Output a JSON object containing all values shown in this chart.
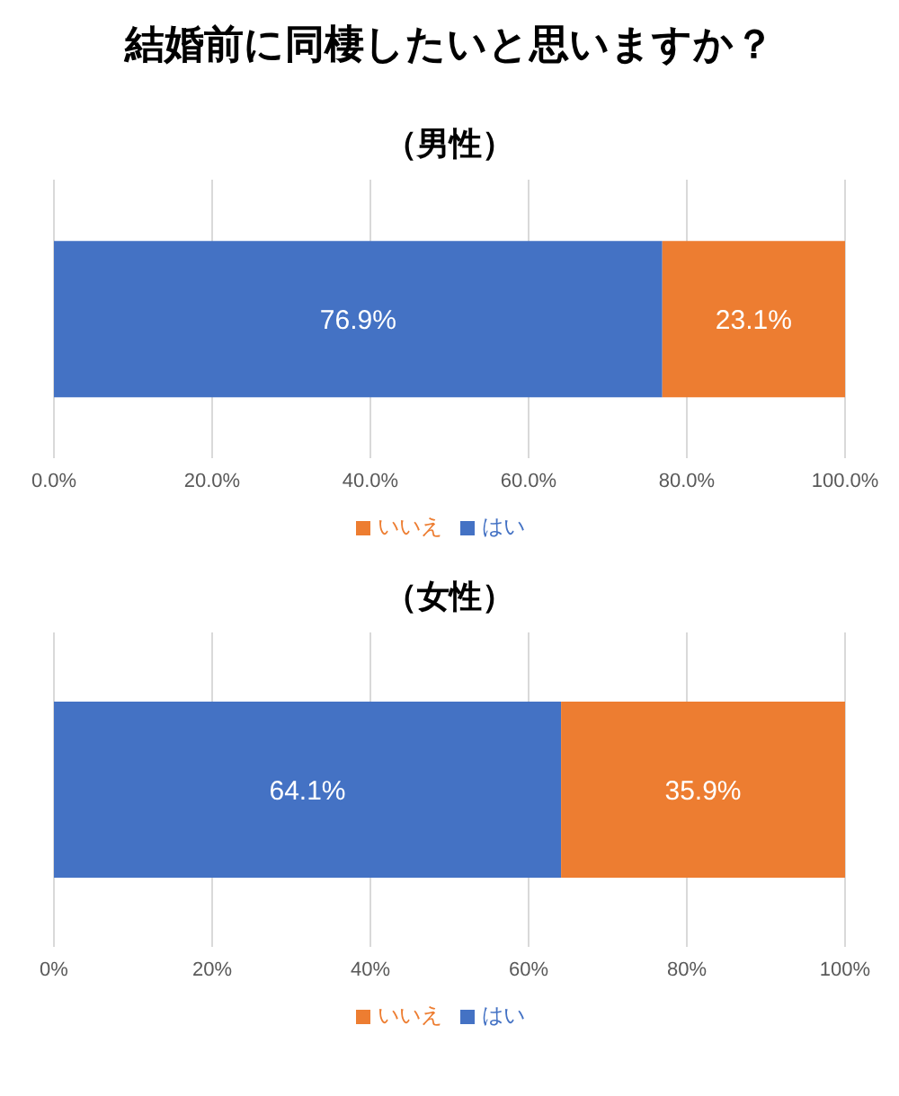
{
  "chart_data": [
    {
      "type": "bar",
      "title": "結婚前に同棲したいと思いますか？",
      "subtitle": "（男性）",
      "orientation": "horizontal",
      "stacked": true,
      "categories": [
        null
      ],
      "series": [
        {
          "name": "はい",
          "color": "#4472c4",
          "values": [
            76.9
          ],
          "value_labels": [
            "76.9%"
          ]
        },
        {
          "name": "いいえ",
          "color": "#ed7d31",
          "values": [
            23.1
          ],
          "value_labels": [
            "23.1%"
          ]
        }
      ],
      "xlim": [
        0,
        100
      ],
      "xticks": [
        {
          "value": 0,
          "label": "0.0%"
        },
        {
          "value": 20,
          "label": "20.0%"
        },
        {
          "value": 40,
          "label": "40.0%"
        },
        {
          "value": 60,
          "label": "60.0%"
        },
        {
          "value": 80,
          "label": "80.0%"
        },
        {
          "value": 100,
          "label": "100.0%"
        }
      ],
      "grid": "x",
      "legend": "bottom",
      "tick_labels": "x"
    },
    {
      "type": "bar",
      "subtitle": "（女性）",
      "orientation": "horizontal",
      "stacked": true,
      "categories": [
        null
      ],
      "series": [
        {
          "name": "はい",
          "color": "#4472c4",
          "values": [
            64.1
          ],
          "value_labels": [
            "64.1%"
          ]
        },
        {
          "name": "いいえ",
          "color": "#ed7d31",
          "values": [
            35.9
          ],
          "value_labels": [
            "35.9%"
          ]
        }
      ],
      "xlim": [
        0,
        100
      ],
      "xticks": [
        {
          "value": 0,
          "label": "0%"
        },
        {
          "value": 20,
          "label": "20%"
        },
        {
          "value": 40,
          "label": "40%"
        },
        {
          "value": 60,
          "label": "60%"
        },
        {
          "value": 80,
          "label": "80%"
        },
        {
          "value": 100,
          "label": "100%"
        }
      ],
      "grid": "x",
      "legend": "bottom",
      "tick_labels": "x"
    }
  ]
}
